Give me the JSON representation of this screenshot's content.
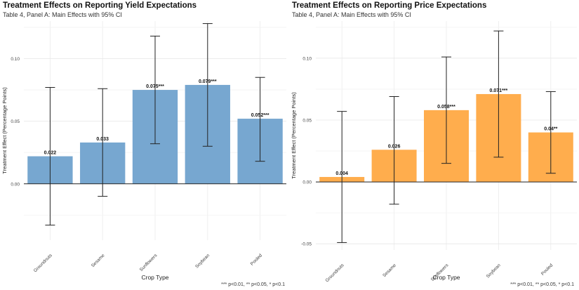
{
  "chart_data": [
    {
      "type": "bar",
      "title": "Treatment Effects on Reporting Yield Expectations",
      "subtitle": "Table 4, Panel A: Main Effects with 95% CI",
      "xlabel": "Crop Type",
      "ylabel": "Treatment Effect (Percentage Points)",
      "categories": [
        "Groundnuts",
        "Sesame",
        "Sunflowers",
        "Soybean",
        "Pooled"
      ],
      "values": [
        0.022,
        0.033,
        0.075,
        0.079,
        0.052
      ],
      "ci_lower": [
        -0.033,
        -0.01,
        0.032,
        0.03,
        0.018
      ],
      "ci_upper": [
        0.077,
        0.076,
        0.118,
        0.128,
        0.085
      ],
      "value_labels": [
        "0.022",
        "0.033",
        "0.075***",
        "0.079***",
        "0.052***"
      ],
      "ylim": [
        -0.045,
        0.13
      ],
      "yticks": [
        0.0,
        0.05,
        0.1
      ],
      "ytick_labels": [
        "0.00",
        "0.05",
        "0.10"
      ],
      "bar_color": "#77a7d0",
      "grid": true,
      "footnote": "*** p<0.01, ** p<0.05, * p<0.1"
    },
    {
      "type": "bar",
      "title": "Treatment Effects on Reporting Price Expectations",
      "subtitle": "Table 4, Panel A: Main Effects with 95% CI",
      "xlabel": "Crop Type",
      "ylabel": "Treatment Effect (Percentage Points)",
      "categories": [
        "Groundnuts",
        "Sesame",
        "Sunflowers",
        "Soybean",
        "Pooled"
      ],
      "values": [
        0.004,
        0.026,
        0.058,
        0.071,
        0.04
      ],
      "ci_lower": [
        -0.049,
        -0.018,
        0.015,
        0.02,
        0.007
      ],
      "ci_upper": [
        0.057,
        0.069,
        0.101,
        0.122,
        0.073
      ],
      "value_labels": [
        "0.004",
        "0.026",
        "0.058***",
        "0.071***",
        "0.04**"
      ],
      "ylim": [
        -0.055,
        0.13
      ],
      "yticks": [
        -0.05,
        0.0,
        0.05,
        0.1
      ],
      "ytick_labels": [
        "-0.05",
        "0.00",
        "0.05",
        "0.10"
      ],
      "bar_color": "#ffad4d",
      "grid": true,
      "footnote": "*** p<0.01, ** p<0.05, * p<0.1"
    }
  ]
}
